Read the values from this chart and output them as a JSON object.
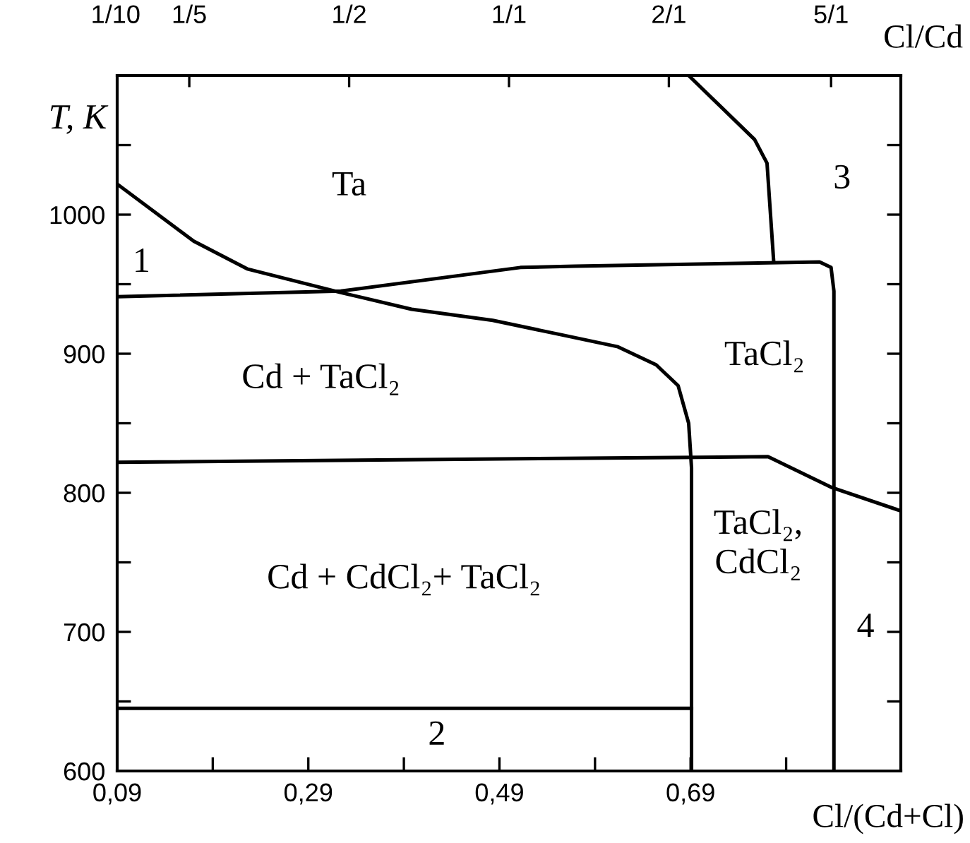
{
  "chart_data": {
    "type": "line",
    "xlabel": "Cl/(Cd+Cl)",
    "x2label": "Cl/Cd",
    "ylabel": "T, K",
    "xlim": [
      0.09,
      0.91
    ],
    "ylim": [
      600,
      1100
    ],
    "xticks": [
      {
        "value": 0.09,
        "label": "0,09"
      },
      {
        "value": 0.19,
        "label": null
      },
      {
        "value": 0.29,
        "label": "0,29"
      },
      {
        "value": 0.39,
        "label": null
      },
      {
        "value": 0.49,
        "label": "0,49"
      },
      {
        "value": 0.59,
        "label": null
      },
      {
        "value": 0.69,
        "label": "0,69"
      },
      {
        "value": 0.79,
        "label": null
      }
    ],
    "yticks": [
      600,
      {
        "value": 650,
        "label": null
      },
      700,
      {
        "value": 750,
        "label": null
      },
      800,
      {
        "value": 850,
        "label": null
      },
      900,
      {
        "value": 950,
        "label": null
      },
      1000,
      {
        "value": 1050,
        "label": null
      }
    ],
    "grid": false,
    "legend": false,
    "series": [
      {
        "color": "#000000",
        "x": [
          0.09,
          0.17,
          0.226,
          0.324,
          0.398,
          0.483,
          0.552,
          0.614,
          0.654,
          0.677,
          0.688,
          0.691,
          0.691
        ],
        "values": [
          1022,
          981,
          961,
          944,
          932,
          924,
          914,
          905,
          892,
          877,
          850,
          818,
          600
        ]
      },
      {
        "color": "#000000",
        "x": [
          0.09,
          0.324,
          0.512,
          0.569,
          0.825,
          0.837,
          0.84,
          0.84
        ],
        "values": [
          941,
          945,
          962,
          963,
          966,
          962,
          945,
          600
        ]
      },
      {
        "color": "#000000",
        "x": [
          0.688,
          0.757,
          0.77,
          0.777
        ],
        "values": [
          1100,
          1054,
          1037,
          966
        ]
      },
      {
        "color": "#000000",
        "x": [
          0.09,
          0.771,
          0.837,
          0.91
        ],
        "values": [
          822,
          826,
          804,
          787
        ]
      },
      {
        "color": "#000000",
        "x": [
          0.09,
          0.691
        ],
        "values": [
          645,
          645
        ]
      }
    ],
    "annotations": [
      "1/10",
      "1/5",
      "1/2",
      "1/1",
      "2/1",
      "5/1",
      "Ta",
      "1",
      "3",
      "Cd + TaCl₂",
      "TaCl₂",
      "Cd + CdCl₂+ TaCl₂",
      "TaCl₂,\nCdCl₂",
      "4",
      "2"
    ]
  }
}
